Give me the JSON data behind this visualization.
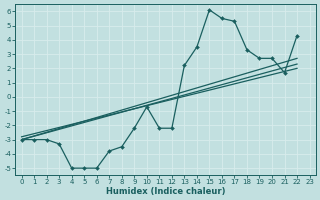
{
  "xlabel": "Humidex (Indice chaleur)",
  "bg_color": "#c2e0e0",
  "line_color": "#1a5f5f",
  "grid_color": "#d8ecec",
  "xlim": [
    -0.5,
    23.5
  ],
  "ylim": [
    -5.5,
    6.5
  ],
  "xticks": [
    0,
    1,
    2,
    3,
    4,
    5,
    6,
    7,
    8,
    9,
    10,
    11,
    12,
    13,
    14,
    15,
    16,
    17,
    18,
    19,
    20,
    21,
    22,
    23
  ],
  "yticks": [
    -5,
    -4,
    -3,
    -2,
    -1,
    0,
    1,
    2,
    3,
    4,
    5,
    6
  ],
  "main_x": [
    0,
    1,
    2,
    3,
    4,
    5,
    6,
    7,
    8,
    9,
    10,
    11,
    12,
    13,
    14,
    15,
    16,
    17,
    18,
    19,
    20,
    21,
    22
  ],
  "main_y": [
    -3,
    -3,
    -3,
    -3.3,
    -5,
    -5,
    -5,
    -3.8,
    -3.5,
    -2.2,
    -0.7,
    -2.2,
    -2.2,
    2.2,
    3.5,
    6.1,
    5.5,
    5.3,
    3.3,
    2.7,
    2.7,
    1.7,
    4.3
  ],
  "trend1_x": [
    0,
    22
  ],
  "trend1_y": [
    -3.0,
    2.7
  ],
  "trend2_x": [
    0,
    22
  ],
  "trend2_y": [
    -3.0,
    2.3
  ],
  "trend3_x": [
    0,
    22
  ],
  "trend3_y": [
    -2.8,
    2.0
  ]
}
